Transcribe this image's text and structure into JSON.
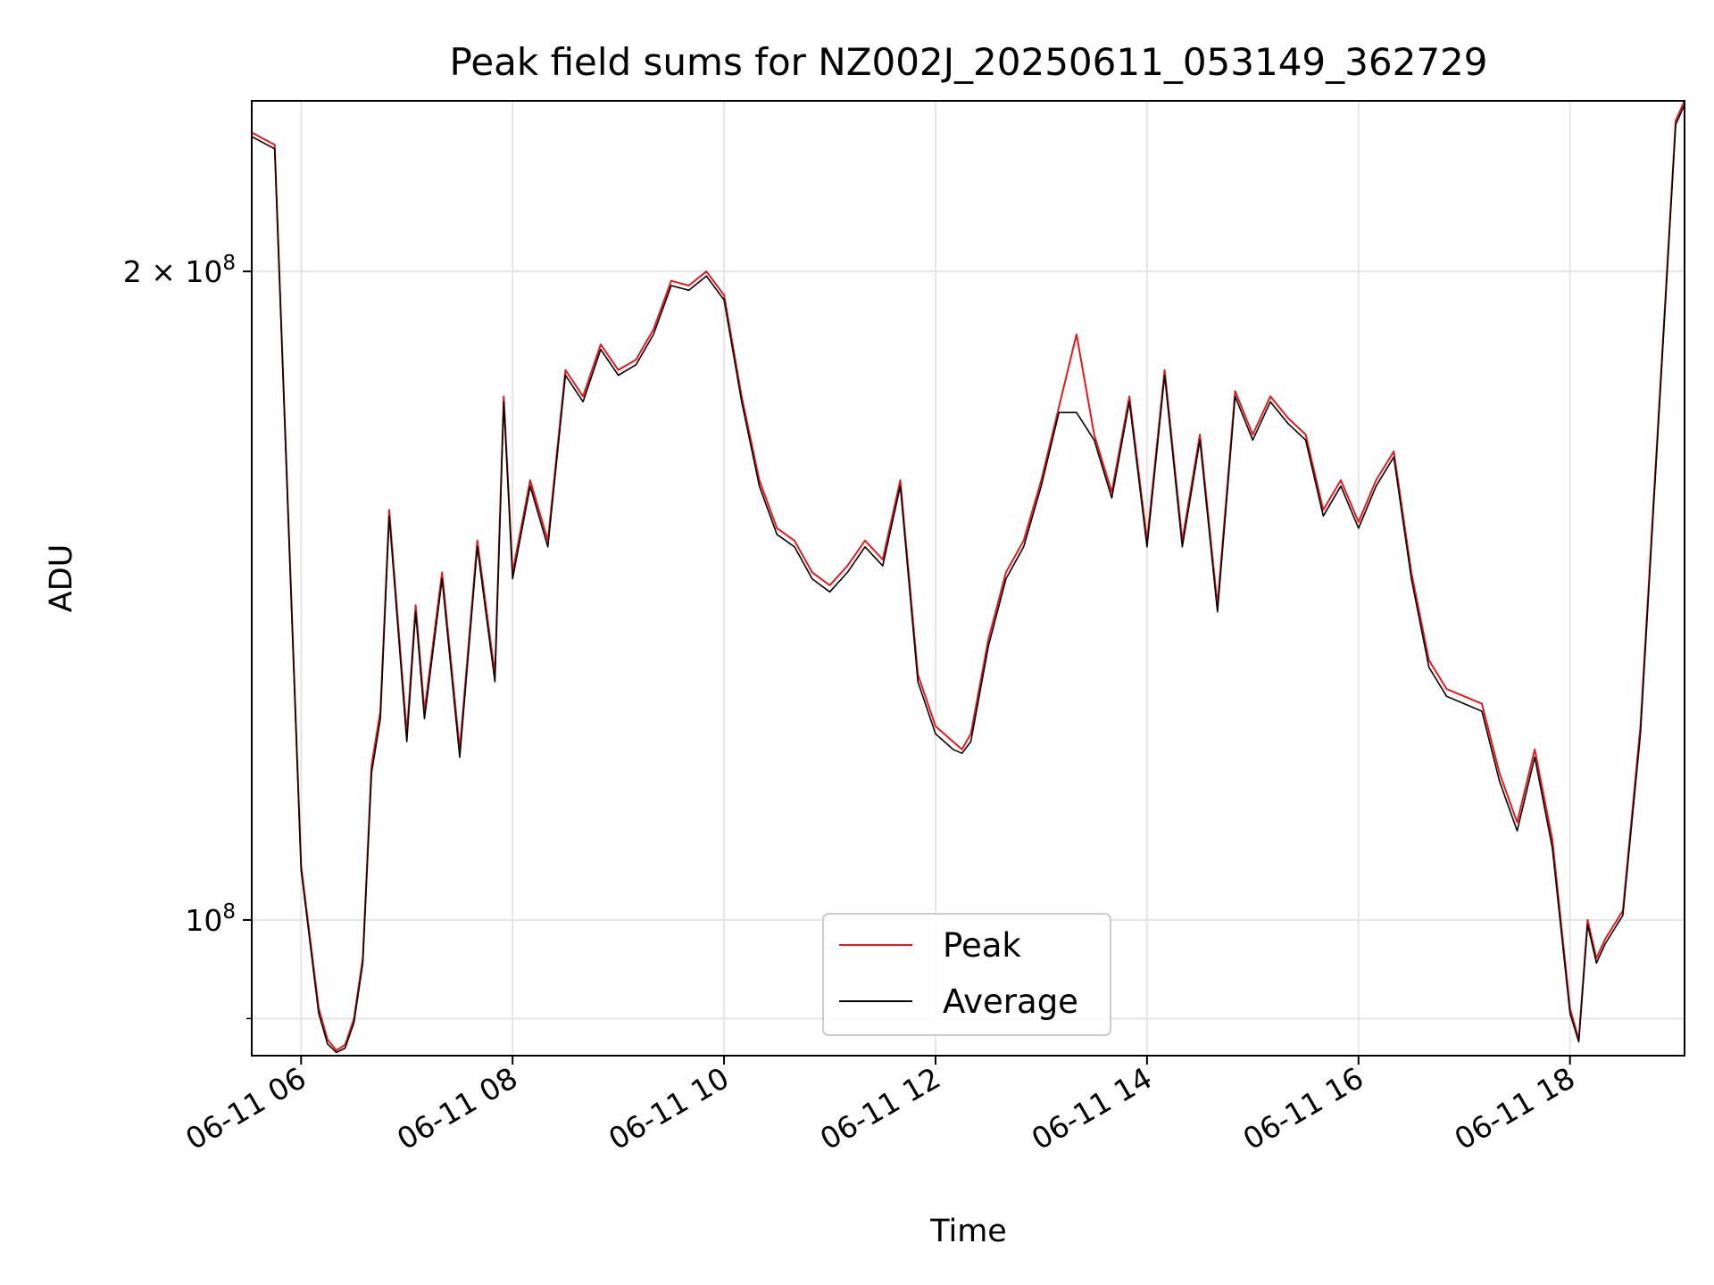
{
  "chart_data": {
    "type": "line",
    "title": "Peak field sums for NZ002J_20250611_053149_362729",
    "xlabel": "Time",
    "ylabel": "ADU",
    "y_scale": "log",
    "xlim": [
      "2025-06-11 05:32",
      "2025-06-11 19:05"
    ],
    "ylim": [
      86500000,
      240000000
    ],
    "grid": true,
    "legend_position": "bottom-center",
    "x_ticks": [
      {
        "value": "2025-06-11 06:00",
        "label": "06-11 06"
      },
      {
        "value": "2025-06-11 08:00",
        "label": "06-11 08"
      },
      {
        "value": "2025-06-11 10:00",
        "label": "06-11 10"
      },
      {
        "value": "2025-06-11 12:00",
        "label": "06-11 12"
      },
      {
        "value": "2025-06-11 14:00",
        "label": "06-11 14"
      },
      {
        "value": "2025-06-11 16:00",
        "label": "06-11 16"
      },
      {
        "value": "2025-06-11 18:00",
        "label": "06-11 18"
      }
    ],
    "y_ticks": [
      {
        "value": 100000000,
        "label_base": "10",
        "label_exp": "8"
      },
      {
        "value": 200000000,
        "label_base": "2 × 10",
        "label_exp": "8"
      }
    ],
    "y_minor_ticks": [
      90000000
    ],
    "x": [
      "05:32",
      "05:45",
      "06:00",
      "06:10",
      "06:15",
      "06:20",
      "06:25",
      "06:30",
      "06:35",
      "06:40",
      "06:45",
      "06:50",
      "07:00",
      "07:05",
      "07:10",
      "07:20",
      "07:30",
      "07:40",
      "07:50",
      "07:55",
      "08:00",
      "08:10",
      "08:20",
      "08:30",
      "08:40",
      "08:50",
      "09:00",
      "09:10",
      "09:20",
      "09:30",
      "09:40",
      "09:50",
      "10:00",
      "10:10",
      "10:20",
      "10:30",
      "10:40",
      "10:50",
      "11:00",
      "11:10",
      "11:20",
      "11:30",
      "11:40",
      "11:50",
      "12:00",
      "12:10",
      "12:15",
      "12:20",
      "12:30",
      "12:40",
      "12:50",
      "13:00",
      "13:10",
      "13:20",
      "13:30",
      "13:40",
      "13:50",
      "14:00",
      "14:10",
      "14:20",
      "14:30",
      "14:40",
      "14:50",
      "15:00",
      "15:10",
      "15:20",
      "15:30",
      "15:40",
      "15:50",
      "16:00",
      "16:10",
      "16:20",
      "16:30",
      "16:40",
      "16:50",
      "17:00",
      "17:10",
      "17:20",
      "17:30",
      "17:40",
      "17:50",
      "18:00",
      "18:05",
      "18:10",
      "18:15",
      "18:20",
      "18:30",
      "18:40",
      "18:50",
      "18:55",
      "19:00",
      "19:05"
    ],
    "series": [
      {
        "name": "Peak",
        "color": "#e31a1c",
        "values": [
          232000000,
          229000000,
          106000000,
          91000000,
          88000000,
          87000000,
          87500000,
          90000000,
          96000000,
          118000000,
          125000000,
          155000000,
          122000000,
          140000000,
          125000000,
          145000000,
          120000000,
          150000000,
          130000000,
          175000000,
          145000000,
          160000000,
          150000000,
          180000000,
          175000000,
          185000000,
          180000000,
          182000000,
          188000000,
          198000000,
          197000000,
          200000000,
          195000000,
          175000000,
          160000000,
          152000000,
          150000000,
          145000000,
          143000000,
          146000000,
          150000000,
          147000000,
          160000000,
          130000000,
          123000000,
          121000000,
          120000000,
          122000000,
          135000000,
          145000000,
          150000000,
          160000000,
          173000000,
          187000000,
          168000000,
          158000000,
          175000000,
          150000000,
          180000000,
          150000000,
          168000000,
          140000000,
          176000000,
          168000000,
          175000000,
          171000000,
          168000000,
          155000000,
          160000000,
          153000000,
          160000000,
          165000000,
          145000000,
          132000000,
          128000000,
          127000000,
          126000000,
          117000000,
          111000000,
          120000000,
          109000000,
          91000000,
          88000000,
          100000000,
          96000000,
          98000000,
          101000000,
          123000000,
          170000000,
          200000000,
          235000000,
          240000000
        ]
      },
      {
        "name": "Average",
        "color": "#000000",
        "values": [
          231000000,
          228000000,
          105500000,
          90500000,
          87600000,
          86800000,
          87200000,
          89600000,
          95500000,
          117000000,
          124000000,
          154000000,
          121000000,
          139000000,
          124000000,
          144000000,
          119000000,
          149000000,
          129000000,
          174000000,
          144000000,
          159000000,
          149000000,
          179000000,
          174000000,
          184000000,
          179000000,
          181000000,
          187000000,
          197000000,
          196000000,
          199000000,
          194000000,
          174000000,
          159000000,
          151000000,
          149000000,
          144000000,
          142000000,
          145000000,
          149000000,
          146000000,
          159000000,
          129000000,
          122000000,
          120000000,
          119500000,
          121000000,
          134000000,
          144000000,
          149000000,
          159000000,
          172000000,
          172000000,
          167000000,
          157000000,
          174000000,
          149000000,
          179000000,
          149000000,
          167000000,
          139000000,
          175000000,
          167000000,
          174000000,
          170000000,
          167000000,
          154000000,
          159000000,
          152000000,
          159000000,
          164000000,
          144000000,
          131000000,
          127000000,
          126000000,
          125000000,
          116000000,
          110000000,
          119000000,
          108000000,
          90500000,
          87800000,
          99500000,
          95500000,
          97500000,
          100500000,
          122000000,
          169000000,
          199000000,
          234000000,
          239000000
        ]
      }
    ]
  }
}
